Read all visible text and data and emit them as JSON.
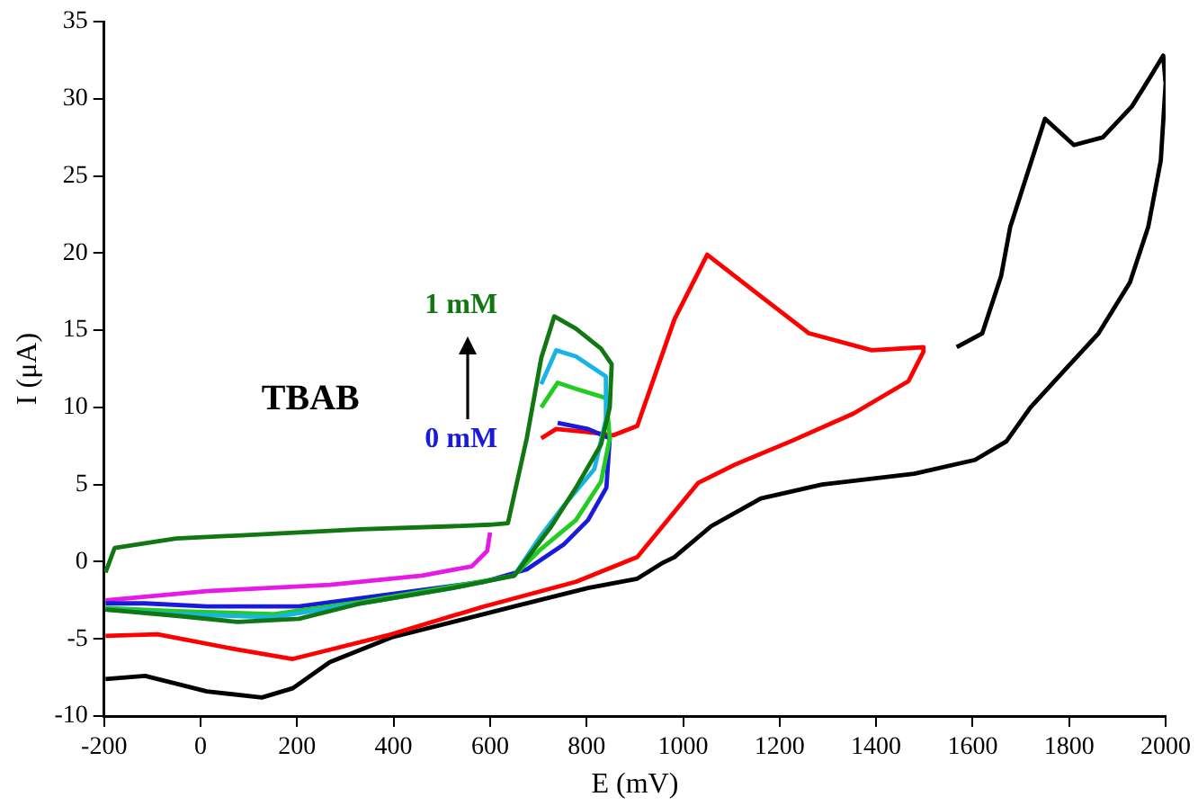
{
  "chart_data": {
    "type": "line",
    "xlabel": "E (mV)",
    "ylabel": "I (μA)",
    "xlim": [
      -200,
      2000
    ],
    "ylim": [
      -10,
      35
    ],
    "xticks": [
      -200,
      0,
      200,
      400,
      600,
      800,
      1000,
      1200,
      1400,
      1600,
      1800,
      2000
    ],
    "yticks": [
      -10,
      -5,
      0,
      5,
      10,
      15,
      20,
      25,
      30,
      35
    ],
    "grid": false,
    "legend": false,
    "marker": "none",
    "line_style": "solid",
    "annotations": [
      "TBAB",
      "1 mM",
      "0 mM"
    ],
    "series": [
      {
        "color": "#000000",
        "x": [
          1567,
          1620,
          1659,
          1678,
          1750,
          1810,
          1870,
          1930,
          1970,
          1995,
          2000,
          1990,
          1964,
          1926,
          1861,
          1796,
          1720,
          1670,
          1605,
          1479,
          1288,
          1161,
          1058,
          982,
          956,
          905,
          803,
          650,
          396,
          268,
          191,
          127,
          13,
          -115,
          -197
        ],
        "values": [
          13.9,
          14.8,
          18.5,
          21.7,
          28.7,
          27.0,
          27.5,
          29.5,
          31.5,
          32.8,
          31.0,
          26.0,
          21.7,
          18.1,
          14.8,
          12.6,
          10.0,
          7.8,
          6.6,
          5.7,
          5.0,
          4.1,
          2.3,
          0.3,
          -0.1,
          -1.1,
          -1.7,
          -2.9,
          -4.9,
          -6.5,
          -8.2,
          -8.8,
          -8.4,
          -7.4,
          -7.6
        ]
      },
      {
        "color": "#ff0000",
        "x": [
          706,
          737,
          803,
          856,
          905,
          982,
          1050,
          1161,
          1261,
          1391,
          1498,
          1498,
          1467,
          1353,
          1223,
          1108,
          1031,
          905,
          778,
          587,
          396,
          268,
          191,
          77,
          -89,
          -197
        ],
        "values": [
          8.0,
          8.6,
          8.4,
          8.2,
          8.8,
          15.7,
          19.9,
          17.2,
          14.8,
          13.7,
          13.9,
          13.6,
          11.7,
          9.6,
          7.8,
          6.3,
          5.1,
          0.3,
          -1.3,
          -2.9,
          -4.7,
          -5.7,
          -6.3,
          -5.7,
          -4.7,
          -4.8
        ]
      },
      {
        "color": "#e619e6",
        "x": [
          600,
          594,
          562,
          459,
          268,
          13,
          -197
        ],
        "values": [
          1.9,
          0.7,
          -0.3,
          -0.9,
          -1.5,
          -1.9,
          -2.5
        ]
      },
      {
        "color": "#1a1adc",
        "x": [
          740,
          803,
          848,
          841,
          803,
          752,
          676,
          587,
          396,
          204,
          13,
          -115,
          -197
        ],
        "values": [
          9.0,
          8.6,
          8.0,
          4.8,
          2.7,
          1.1,
          -0.5,
          -1.3,
          -2.1,
          -2.9,
          -2.9,
          -2.7,
          -2.7
        ]
      },
      {
        "color": "#22cc22",
        "x": [
          706,
          740,
          778,
          841,
          848,
          830,
          778,
          701,
          650,
          523,
          332,
          150,
          -51,
          -197
        ],
        "values": [
          10.0,
          11.6,
          11.2,
          10.6,
          8.0,
          5.2,
          2.7,
          0.7,
          -0.9,
          -1.6,
          -2.6,
          -3.4,
          -3.2,
          -3.0
        ]
      },
      {
        "color": "#19b4e6",
        "x": [
          706,
          737,
          778,
          840,
          840,
          816,
          752,
          701,
          650,
          523,
          332,
          150,
          -51,
          -197
        ],
        "values": [
          11.5,
          13.7,
          13.3,
          12.0,
          9.2,
          6.0,
          3.6,
          1.5,
          -0.9,
          -1.7,
          -2.7,
          -3.6,
          -3.4,
          -3.1
        ]
      },
      {
        "color": "#117711",
        "x": [
          -197,
          -178,
          -51,
          140,
          332,
          523,
          600,
          637,
          676,
          706,
          733,
          778,
          830,
          852,
          848,
          830,
          778,
          727,
          650,
          523,
          332,
          204,
          77,
          -51,
          -197
        ],
        "values": [
          -0.7,
          0.9,
          1.5,
          1.8,
          2.1,
          2.3,
          2.4,
          2.5,
          8.0,
          13.2,
          15.9,
          15.1,
          13.8,
          12.8,
          10.0,
          7.6,
          4.8,
          2.3,
          -0.9,
          -1.7,
          -2.7,
          -3.7,
          -3.9,
          -3.5,
          -3.1
        ]
      }
    ]
  }
}
